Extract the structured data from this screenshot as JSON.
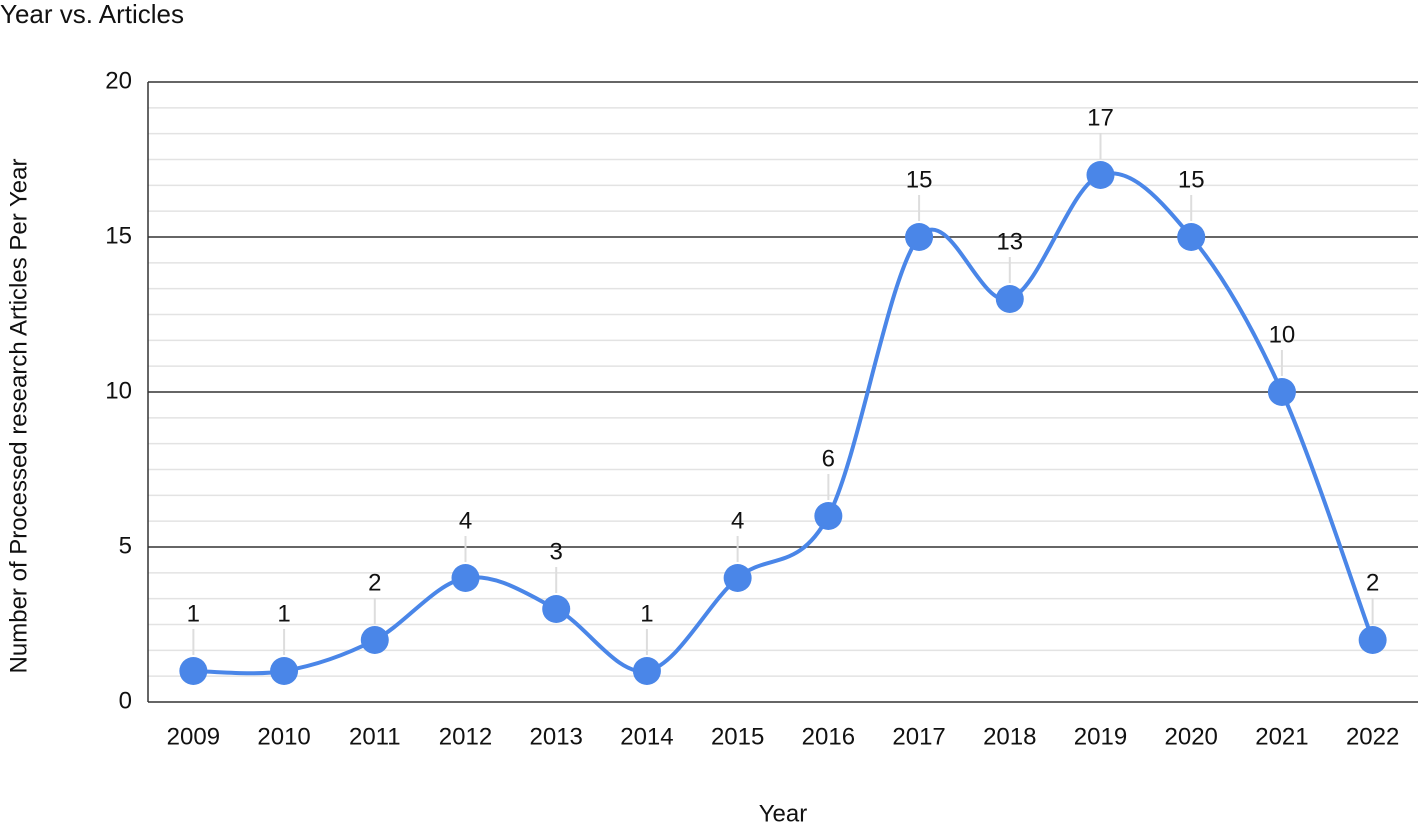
{
  "chart_data": {
    "type": "line",
    "title": "Year vs. Articles",
    "x_label": "Year",
    "y_label": "Number of Processed research Articles Per Year",
    "categories": [
      "2009",
      "2010",
      "2011",
      "2012",
      "2013",
      "2014",
      "2015",
      "2016",
      "2017",
      "2018",
      "2019",
      "2020",
      "2021",
      "2022"
    ],
    "values": [
      1,
      1,
      2,
      4,
      3,
      1,
      4,
      6,
      15,
      13,
      17,
      15,
      10,
      2
    ],
    "color": "#4a86e8",
    "ylim": [
      0,
      20
    ],
    "yticks": [
      0,
      5,
      10,
      15,
      20
    ],
    "grid": true,
    "minor_grid_divisions": 6,
    "smooth": true,
    "data_labels": true
  }
}
